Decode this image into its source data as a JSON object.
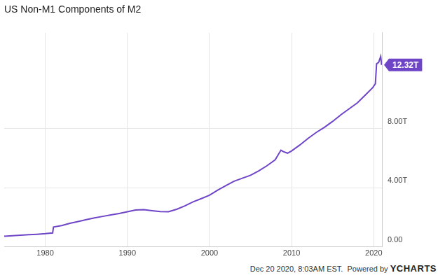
{
  "chart_data": {
    "type": "line",
    "title": "US Non-M1 Components of M2",
    "x": [
      1975.0,
      1976.0,
      1977.0,
      1978.0,
      1979.0,
      1980.0,
      1980.9,
      1981.0,
      1982.0,
      1983.0,
      1984.0,
      1985.0,
      1986.0,
      1987.0,
      1988.0,
      1989.0,
      1990.0,
      1991.0,
      1992.0,
      1993.0,
      1994.0,
      1995.0,
      1996.0,
      1997.0,
      1998.0,
      1999.0,
      2000.0,
      2001.0,
      2002.0,
      2003.0,
      2004.0,
      2005.0,
      2006.0,
      2007.0,
      2008.0,
      2008.7,
      2009.0,
      2009.5,
      2010.0,
      2011.0,
      2012.0,
      2013.0,
      2014.0,
      2015.0,
      2016.0,
      2017.0,
      2018.0,
      2019.0,
      2019.9,
      2020.2,
      2020.35,
      2020.6,
      2020.85,
      2020.96
    ],
    "values": [
      0.72,
      0.76,
      0.8,
      0.83,
      0.86,
      0.9,
      0.95,
      1.35,
      1.45,
      1.6,
      1.72,
      1.85,
      1.97,
      2.07,
      2.17,
      2.27,
      2.38,
      2.5,
      2.52,
      2.46,
      2.4,
      2.38,
      2.55,
      2.78,
      3.05,
      3.27,
      3.5,
      3.85,
      4.15,
      4.45,
      4.65,
      4.85,
      5.15,
      5.5,
      5.9,
      6.55,
      6.45,
      6.35,
      6.5,
      6.9,
      7.35,
      7.75,
      8.1,
      8.5,
      8.95,
      9.35,
      9.75,
      10.3,
      10.8,
      11.05,
      12.4,
      12.5,
      12.9,
      12.32
    ],
    "value_labels": [
      null,
      null,
      null,
      null,
      null,
      null,
      null,
      null,
      null,
      null,
      null,
      null,
      null,
      null,
      null,
      null,
      null,
      null,
      null,
      null,
      null,
      null,
      null,
      null,
      null,
      null,
      null,
      null,
      null,
      null,
      null,
      null,
      null,
      null,
      null,
      null,
      null,
      null,
      null,
      null,
      null,
      null,
      null,
      null,
      null,
      null,
      null,
      null,
      null,
      null,
      null,
      null,
      null,
      "12.32T"
    ],
    "color": "#6f45c8",
    "xlim": [
      1975,
      2021
    ],
    "xticks": [
      1980,
      1990,
      2000,
      2010,
      2020
    ],
    "ylim": [
      0,
      14.5
    ],
    "yticks": [
      {
        "value": 0,
        "label": "0.00"
      },
      {
        "value": 4,
        "label": "4.00T"
      },
      {
        "value": 8,
        "label": "8.00T"
      }
    ],
    "grid": true,
    "credits": {
      "date": "Dec 20 2020, 8:03AM EST.",
      "powered": "Powered by",
      "brand": "YCHARTS"
    }
  }
}
